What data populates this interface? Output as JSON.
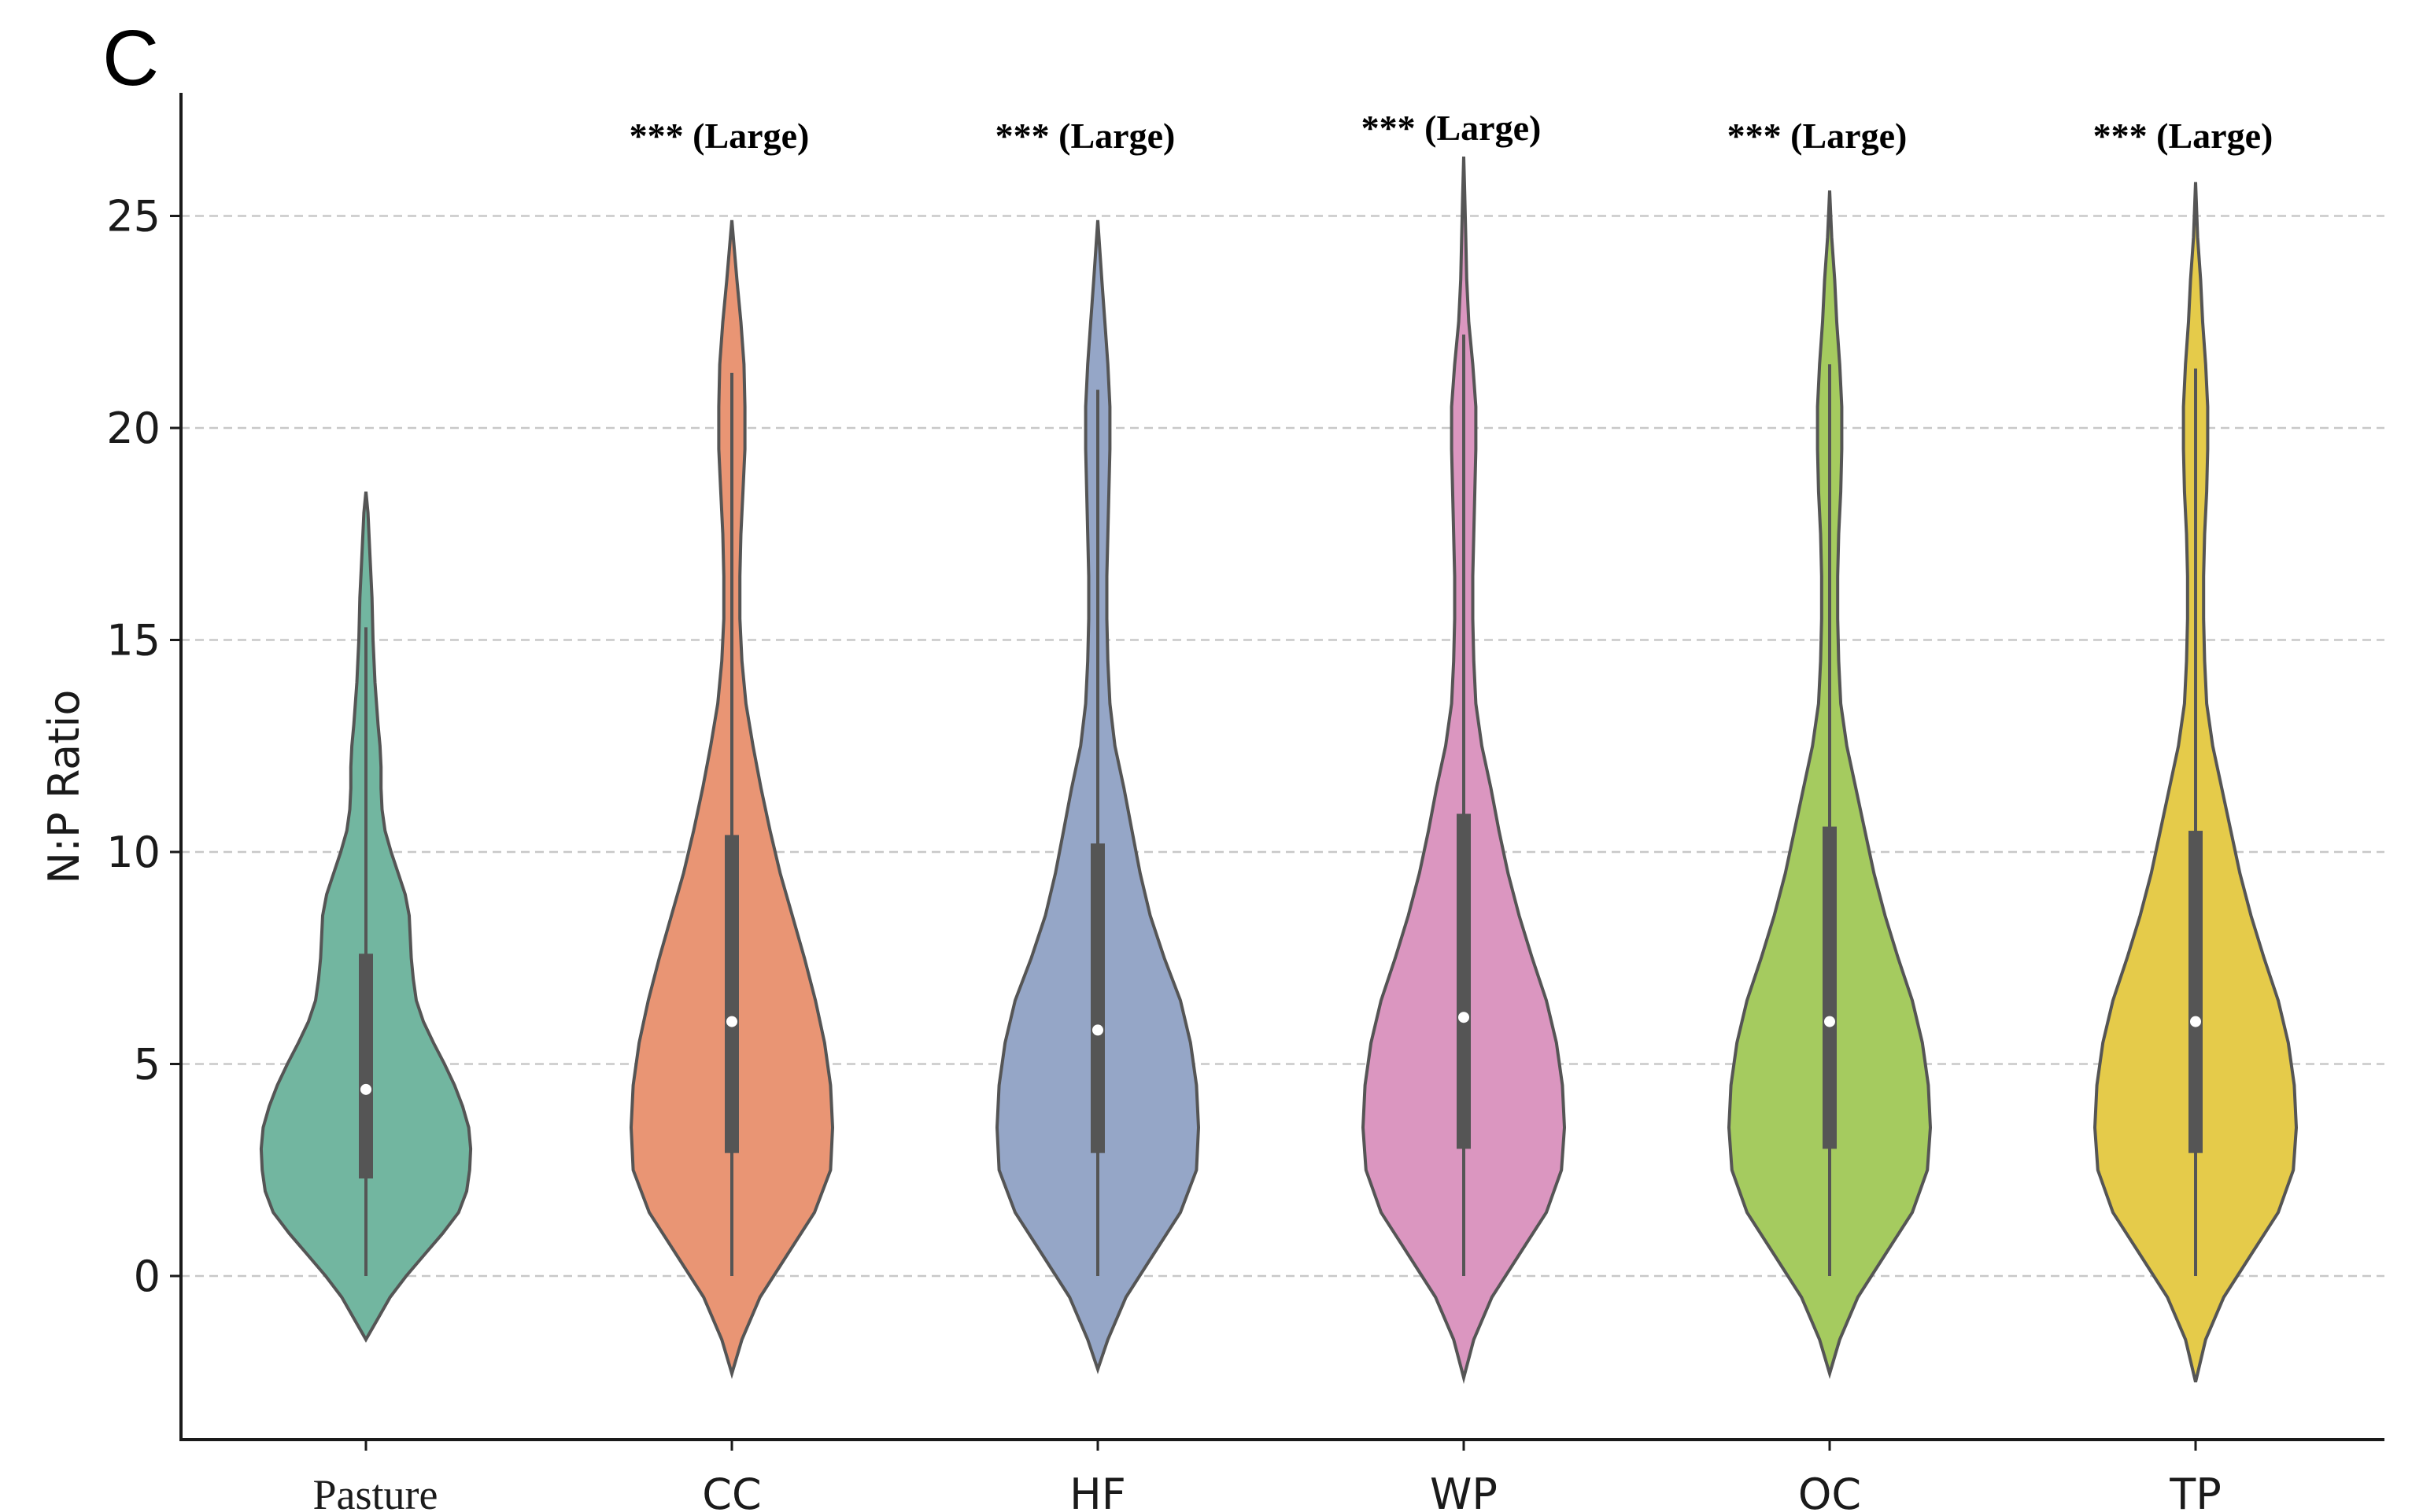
{
  "panel_label": "C",
  "chart_data": {
    "type": "violin",
    "title": "",
    "xlabel": "",
    "ylabel": "N:P Ratio",
    "ylim": [
      -3.8,
      28
    ],
    "yticks": [
      0,
      5,
      10,
      15,
      20,
      25
    ],
    "grid": "horizontal dashed",
    "categories": [
      "Pasture",
      "CC",
      "HF",
      "WP",
      "OC",
      "TP"
    ],
    "colors": [
      "#72b6a0",
      "#e99574",
      "#95a6c7",
      "#db96c0",
      "#a5cb5f",
      "#e5cb4a"
    ],
    "series": [
      {
        "category": "Pasture",
        "annotation": "",
        "median": 4.4,
        "q1": 2.3,
        "q3": 7.6,
        "whisker_low": 0,
        "whisker_high": 15.3,
        "violin_min": -1.5,
        "violin_max": 18.5,
        "density": [
          [
            -1.5,
            0
          ],
          [
            -1.0,
            0.12
          ],
          [
            -0.5,
            0.24
          ],
          [
            0,
            0.4
          ],
          [
            0.5,
            0.58
          ],
          [
            1.0,
            0.76
          ],
          [
            1.5,
            0.92
          ],
          [
            2.0,
            1.0
          ],
          [
            2.5,
            1.03
          ],
          [
            3.0,
            1.04
          ],
          [
            3.5,
            1.02
          ],
          [
            4.0,
            0.96
          ],
          [
            4.5,
            0.88
          ],
          [
            5.0,
            0.78
          ],
          [
            5.5,
            0.67
          ],
          [
            6.0,
            0.57
          ],
          [
            6.5,
            0.5
          ],
          [
            7.0,
            0.47
          ],
          [
            7.5,
            0.45
          ],
          [
            8.0,
            0.44
          ],
          [
            8.5,
            0.43
          ],
          [
            9.0,
            0.39
          ],
          [
            9.5,
            0.32
          ],
          [
            10.0,
            0.25
          ],
          [
            10.5,
            0.19
          ],
          [
            11.0,
            0.16
          ],
          [
            11.5,
            0.15
          ],
          [
            12.0,
            0.15
          ],
          [
            12.5,
            0.14
          ],
          [
            13.0,
            0.12
          ],
          [
            14.0,
            0.09
          ],
          [
            15.0,
            0.07
          ],
          [
            16.0,
            0.06
          ],
          [
            17.0,
            0.04
          ],
          [
            18.0,
            0.02
          ],
          [
            18.5,
            0
          ]
        ]
      },
      {
        "category": "CC",
        "annotation": "*** (Large)",
        "median": 6.0,
        "q1": 2.9,
        "q3": 10.4,
        "whisker_low": 0,
        "whisker_high": 21.3,
        "violin_min": -2.3,
        "violin_max": 24.9,
        "density": [
          [
            -2.3,
            0
          ],
          [
            -1.5,
            0.1
          ],
          [
            -0.5,
            0.28
          ],
          [
            0.5,
            0.55
          ],
          [
            1.5,
            0.82
          ],
          [
            2.5,
            0.98
          ],
          [
            3.5,
            1.0
          ],
          [
            4.5,
            0.98
          ],
          [
            5.5,
            0.92
          ],
          [
            6.5,
            0.83
          ],
          [
            7.5,
            0.72
          ],
          [
            8.5,
            0.6
          ],
          [
            9.5,
            0.48
          ],
          [
            10.5,
            0.38
          ],
          [
            11.5,
            0.29
          ],
          [
            12.5,
            0.21
          ],
          [
            13.5,
            0.14
          ],
          [
            14.5,
            0.1
          ],
          [
            15.5,
            0.08
          ],
          [
            16.5,
            0.08
          ],
          [
            17.5,
            0.09
          ],
          [
            18.5,
            0.11
          ],
          [
            19.5,
            0.13
          ],
          [
            20.5,
            0.13
          ],
          [
            21.5,
            0.12
          ],
          [
            22.5,
            0.09
          ],
          [
            23.5,
            0.05
          ],
          [
            24.9,
            0
          ]
        ]
      },
      {
        "category": "HF",
        "annotation": "*** (Large)",
        "median": 5.8,
        "q1": 2.9,
        "q3": 10.2,
        "whisker_low": 0,
        "whisker_high": 20.9,
        "violin_min": -2.2,
        "violin_max": 24.9,
        "density": [
          [
            -2.2,
            0
          ],
          [
            -1.5,
            0.1
          ],
          [
            -0.5,
            0.28
          ],
          [
            0.5,
            0.55
          ],
          [
            1.5,
            0.82
          ],
          [
            2.5,
            0.98
          ],
          [
            3.5,
            1.0
          ],
          [
            4.5,
            0.98
          ],
          [
            5.5,
            0.92
          ],
          [
            6.5,
            0.82
          ],
          [
            7.5,
            0.66
          ],
          [
            8.5,
            0.52
          ],
          [
            9.5,
            0.42
          ],
          [
            10.5,
            0.34
          ],
          [
            11.5,
            0.26
          ],
          [
            12.5,
            0.17
          ],
          [
            13.5,
            0.12
          ],
          [
            14.5,
            0.1
          ],
          [
            15.5,
            0.09
          ],
          [
            16.5,
            0.09
          ],
          [
            17.5,
            0.1
          ],
          [
            18.5,
            0.11
          ],
          [
            19.5,
            0.12
          ],
          [
            20.5,
            0.12
          ],
          [
            21.5,
            0.1
          ],
          [
            22.5,
            0.07
          ],
          [
            23.5,
            0.04
          ],
          [
            24.9,
            0
          ]
        ]
      },
      {
        "category": "WP",
        "annotation": "*** (Large)",
        "median": 6.1,
        "q1": 3.0,
        "q3": 10.9,
        "whisker_low": 0,
        "whisker_high": 22.2,
        "violin_min": -2.4,
        "violin_max": 26.4,
        "density": [
          [
            -2.4,
            0
          ],
          [
            -1.5,
            0.1
          ],
          [
            -0.5,
            0.28
          ],
          [
            0.5,
            0.55
          ],
          [
            1.5,
            0.82
          ],
          [
            2.5,
            0.97
          ],
          [
            3.5,
            1.0
          ],
          [
            4.5,
            0.98
          ],
          [
            5.5,
            0.92
          ],
          [
            6.5,
            0.82
          ],
          [
            7.5,
            0.68
          ],
          [
            8.5,
            0.55
          ],
          [
            9.5,
            0.44
          ],
          [
            10.5,
            0.35
          ],
          [
            11.5,
            0.27
          ],
          [
            12.5,
            0.18
          ],
          [
            13.5,
            0.12
          ],
          [
            14.5,
            0.1
          ],
          [
            15.5,
            0.09
          ],
          [
            16.5,
            0.09
          ],
          [
            17.5,
            0.1
          ],
          [
            18.5,
            0.11
          ],
          [
            19.5,
            0.12
          ],
          [
            20.5,
            0.12
          ],
          [
            21.5,
            0.09
          ],
          [
            22.5,
            0.05
          ],
          [
            23.5,
            0.03
          ],
          [
            24.5,
            0.02
          ],
          [
            25.5,
            0.01
          ],
          [
            26.4,
            0
          ]
        ]
      },
      {
        "category": "OC",
        "annotation": "*** (Large)",
        "median": 6.0,
        "q1": 3.0,
        "q3": 10.6,
        "whisker_low": 0,
        "whisker_high": 21.5,
        "violin_min": -2.3,
        "violin_max": 25.6,
        "density": [
          [
            -2.3,
            0
          ],
          [
            -1.5,
            0.1
          ],
          [
            -0.5,
            0.28
          ],
          [
            0.5,
            0.55
          ],
          [
            1.5,
            0.82
          ],
          [
            2.5,
            0.97
          ],
          [
            3.5,
            1.0
          ],
          [
            4.5,
            0.98
          ],
          [
            5.5,
            0.92
          ],
          [
            6.5,
            0.82
          ],
          [
            7.5,
            0.68
          ],
          [
            8.5,
            0.55
          ],
          [
            9.5,
            0.44
          ],
          [
            10.5,
            0.35
          ],
          [
            11.5,
            0.26
          ],
          [
            12.5,
            0.17
          ],
          [
            13.5,
            0.11
          ],
          [
            14.5,
            0.09
          ],
          [
            15.5,
            0.08
          ],
          [
            16.5,
            0.08
          ],
          [
            17.5,
            0.09
          ],
          [
            18.5,
            0.11
          ],
          [
            19.5,
            0.12
          ],
          [
            20.5,
            0.12
          ],
          [
            21.5,
            0.1
          ],
          [
            22.5,
            0.07
          ],
          [
            23.5,
            0.05
          ],
          [
            24.5,
            0.02
          ],
          [
            25.6,
            0
          ]
        ]
      },
      {
        "category": "TP",
        "annotation": "*** (Large)",
        "median": 6.0,
        "q1": 2.9,
        "q3": 10.5,
        "whisker_low": 0,
        "whisker_high": 21.4,
        "violin_min": -2.5,
        "violin_max": 25.8,
        "density": [
          [
            -2.5,
            0
          ],
          [
            -1.5,
            0.1
          ],
          [
            -0.5,
            0.28
          ],
          [
            0.5,
            0.55
          ],
          [
            1.5,
            0.82
          ],
          [
            2.5,
            0.97
          ],
          [
            3.5,
            1.0
          ],
          [
            4.5,
            0.98
          ],
          [
            5.5,
            0.92
          ],
          [
            6.5,
            0.82
          ],
          [
            7.5,
            0.68
          ],
          [
            8.5,
            0.55
          ],
          [
            9.5,
            0.44
          ],
          [
            10.5,
            0.35
          ],
          [
            11.5,
            0.26
          ],
          [
            12.5,
            0.17
          ],
          [
            13.5,
            0.11
          ],
          [
            14.5,
            0.09
          ],
          [
            15.5,
            0.08
          ],
          [
            16.5,
            0.08
          ],
          [
            17.5,
            0.09
          ],
          [
            18.5,
            0.11
          ],
          [
            19.5,
            0.12
          ],
          [
            20.5,
            0.12
          ],
          [
            21.5,
            0.1
          ],
          [
            22.5,
            0.07
          ],
          [
            23.5,
            0.05
          ],
          [
            24.5,
            0.02
          ],
          [
            25.8,
            0
          ]
        ]
      }
    ]
  }
}
